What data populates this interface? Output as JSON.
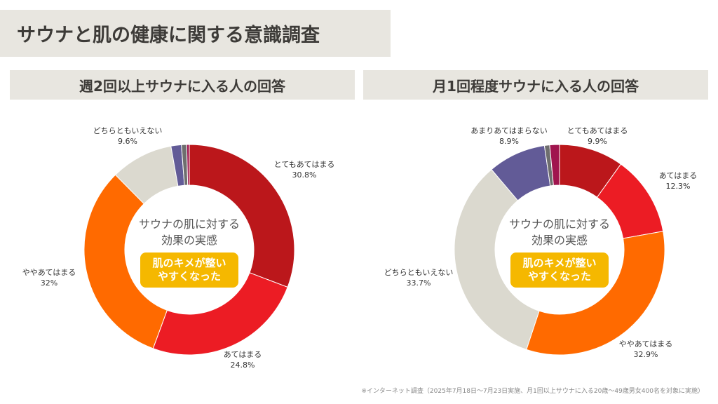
{
  "title": "サウナと肌の健康に関する意識調査",
  "center": {
    "line1": "サウナの肌に対する",
    "line2": "効果の実感",
    "badge_line1": "肌のキメが整い",
    "badge_line2": "やすくなった"
  },
  "footnote": "※インターネット調査（2025年7月18日〜7月23日実施、月1回以上サウナに入る20歳〜49歳男女400名を対象に実施）",
  "colors": {
    "very": "#bb171b",
    "somewhat": "#ec1c24",
    "slightly": "#ff6a00",
    "neutral": "#dbd9cf",
    "not_much": "#625b97",
    "gray": "#6e6e6e",
    "magenta": "#a0154e"
  },
  "chart_data": [
    {
      "type": "pie",
      "title": "週2回以上サウナに入る人の回答",
      "slices": [
        {
          "label": "とてもあてはまる",
          "value": 30.8,
          "value_label": "30.8%",
          "color": "#bb171b"
        },
        {
          "label": "あてはまる",
          "value": 24.8,
          "value_label": "24.8%",
          "color": "#ec1c24"
        },
        {
          "label": "ややあてはまる",
          "value": 32.0,
          "value_label": "32%",
          "color": "#ff6a00"
        },
        {
          "label": "どちらともいえない",
          "value": 9.6,
          "value_label": "9.6%",
          "color": "#dbd9cf"
        },
        {
          "label": "",
          "value": 1.6,
          "value_label": "",
          "color": "#625b97"
        },
        {
          "label": "",
          "value": 0.8,
          "value_label": "",
          "color": "#6e6e6e"
        },
        {
          "label": "",
          "value": 0.4,
          "value_label": "",
          "color": "#a0154e"
        }
      ]
    },
    {
      "type": "pie",
      "title": "月1回程度サウナに入る人の回答",
      "slices": [
        {
          "label": "とてもあてはまる",
          "value": 9.9,
          "value_label": "9.9%",
          "color": "#bb171b"
        },
        {
          "label": "あてはまる",
          "value": 12.3,
          "value_label": "12.3%",
          "color": "#ec1c24"
        },
        {
          "label": "ややあてはまる",
          "value": 32.9,
          "value_label": "32.9%",
          "color": "#ff6a00"
        },
        {
          "label": "どちらともいえない",
          "value": 33.7,
          "value_label": "33.7%",
          "color": "#dbd9cf"
        },
        {
          "label": "あまりあてはまらない",
          "value": 8.9,
          "value_label": "8.9%",
          "color": "#625b97"
        },
        {
          "label": "",
          "value": 0.8,
          "value_label": "",
          "color": "#6e6e6e"
        },
        {
          "label": "",
          "value": 1.5,
          "value_label": "",
          "color": "#a0154e"
        }
      ]
    }
  ]
}
